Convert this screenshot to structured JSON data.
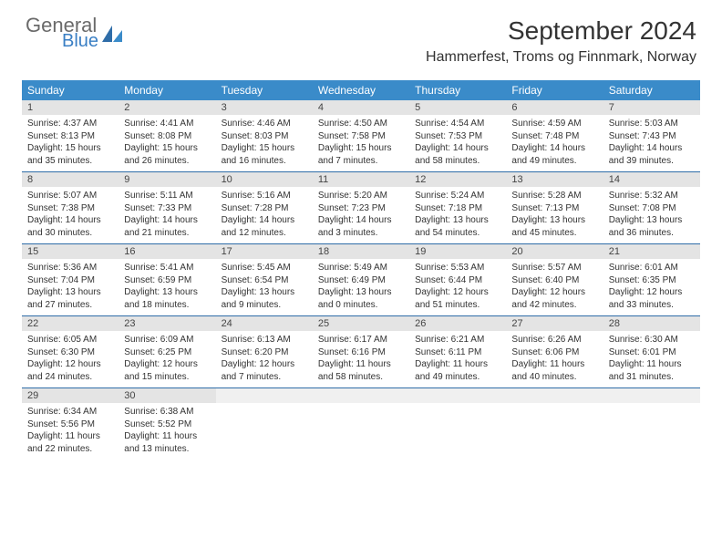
{
  "brand": {
    "general": "General",
    "blue": "Blue",
    "accent": "#3a8bc9"
  },
  "title": "September 2024",
  "location": "Hammerfest, Troms og Finnmark, Norway",
  "colors": {
    "header_bg": "#3a8bc9",
    "header_text": "#ffffff",
    "daynum_bg": "#e4e4e4",
    "border": "#2f6da8",
    "logo_gray": "#6a6a6a",
    "logo_blue": "#3a7fc4"
  },
  "day_labels": [
    "Sunday",
    "Monday",
    "Tuesday",
    "Wednesday",
    "Thursday",
    "Friday",
    "Saturday"
  ],
  "weeks": [
    [
      {
        "n": "1",
        "sr": "Sunrise: 4:37 AM",
        "ss": "Sunset: 8:13 PM",
        "dl1": "Daylight: 15 hours",
        "dl2": "and 35 minutes."
      },
      {
        "n": "2",
        "sr": "Sunrise: 4:41 AM",
        "ss": "Sunset: 8:08 PM",
        "dl1": "Daylight: 15 hours",
        "dl2": "and 26 minutes."
      },
      {
        "n": "3",
        "sr": "Sunrise: 4:46 AM",
        "ss": "Sunset: 8:03 PM",
        "dl1": "Daylight: 15 hours",
        "dl2": "and 16 minutes."
      },
      {
        "n": "4",
        "sr": "Sunrise: 4:50 AM",
        "ss": "Sunset: 7:58 PM",
        "dl1": "Daylight: 15 hours",
        "dl2": "and 7 minutes."
      },
      {
        "n": "5",
        "sr": "Sunrise: 4:54 AM",
        "ss": "Sunset: 7:53 PM",
        "dl1": "Daylight: 14 hours",
        "dl2": "and 58 minutes."
      },
      {
        "n": "6",
        "sr": "Sunrise: 4:59 AM",
        "ss": "Sunset: 7:48 PM",
        "dl1": "Daylight: 14 hours",
        "dl2": "and 49 minutes."
      },
      {
        "n": "7",
        "sr": "Sunrise: 5:03 AM",
        "ss": "Sunset: 7:43 PM",
        "dl1": "Daylight: 14 hours",
        "dl2": "and 39 minutes."
      }
    ],
    [
      {
        "n": "8",
        "sr": "Sunrise: 5:07 AM",
        "ss": "Sunset: 7:38 PM",
        "dl1": "Daylight: 14 hours",
        "dl2": "and 30 minutes."
      },
      {
        "n": "9",
        "sr": "Sunrise: 5:11 AM",
        "ss": "Sunset: 7:33 PM",
        "dl1": "Daylight: 14 hours",
        "dl2": "and 21 minutes."
      },
      {
        "n": "10",
        "sr": "Sunrise: 5:16 AM",
        "ss": "Sunset: 7:28 PM",
        "dl1": "Daylight: 14 hours",
        "dl2": "and 12 minutes."
      },
      {
        "n": "11",
        "sr": "Sunrise: 5:20 AM",
        "ss": "Sunset: 7:23 PM",
        "dl1": "Daylight: 14 hours",
        "dl2": "and 3 minutes."
      },
      {
        "n": "12",
        "sr": "Sunrise: 5:24 AM",
        "ss": "Sunset: 7:18 PM",
        "dl1": "Daylight: 13 hours",
        "dl2": "and 54 minutes."
      },
      {
        "n": "13",
        "sr": "Sunrise: 5:28 AM",
        "ss": "Sunset: 7:13 PM",
        "dl1": "Daylight: 13 hours",
        "dl2": "and 45 minutes."
      },
      {
        "n": "14",
        "sr": "Sunrise: 5:32 AM",
        "ss": "Sunset: 7:08 PM",
        "dl1": "Daylight: 13 hours",
        "dl2": "and 36 minutes."
      }
    ],
    [
      {
        "n": "15",
        "sr": "Sunrise: 5:36 AM",
        "ss": "Sunset: 7:04 PM",
        "dl1": "Daylight: 13 hours",
        "dl2": "and 27 minutes."
      },
      {
        "n": "16",
        "sr": "Sunrise: 5:41 AM",
        "ss": "Sunset: 6:59 PM",
        "dl1": "Daylight: 13 hours",
        "dl2": "and 18 minutes."
      },
      {
        "n": "17",
        "sr": "Sunrise: 5:45 AM",
        "ss": "Sunset: 6:54 PM",
        "dl1": "Daylight: 13 hours",
        "dl2": "and 9 minutes."
      },
      {
        "n": "18",
        "sr": "Sunrise: 5:49 AM",
        "ss": "Sunset: 6:49 PM",
        "dl1": "Daylight: 13 hours",
        "dl2": "and 0 minutes."
      },
      {
        "n": "19",
        "sr": "Sunrise: 5:53 AM",
        "ss": "Sunset: 6:44 PM",
        "dl1": "Daylight: 12 hours",
        "dl2": "and 51 minutes."
      },
      {
        "n": "20",
        "sr": "Sunrise: 5:57 AM",
        "ss": "Sunset: 6:40 PM",
        "dl1": "Daylight: 12 hours",
        "dl2": "and 42 minutes."
      },
      {
        "n": "21",
        "sr": "Sunrise: 6:01 AM",
        "ss": "Sunset: 6:35 PM",
        "dl1": "Daylight: 12 hours",
        "dl2": "and 33 minutes."
      }
    ],
    [
      {
        "n": "22",
        "sr": "Sunrise: 6:05 AM",
        "ss": "Sunset: 6:30 PM",
        "dl1": "Daylight: 12 hours",
        "dl2": "and 24 minutes."
      },
      {
        "n": "23",
        "sr": "Sunrise: 6:09 AM",
        "ss": "Sunset: 6:25 PM",
        "dl1": "Daylight: 12 hours",
        "dl2": "and 15 minutes."
      },
      {
        "n": "24",
        "sr": "Sunrise: 6:13 AM",
        "ss": "Sunset: 6:20 PM",
        "dl1": "Daylight: 12 hours",
        "dl2": "and 7 minutes."
      },
      {
        "n": "25",
        "sr": "Sunrise: 6:17 AM",
        "ss": "Sunset: 6:16 PM",
        "dl1": "Daylight: 11 hours",
        "dl2": "and 58 minutes."
      },
      {
        "n": "26",
        "sr": "Sunrise: 6:21 AM",
        "ss": "Sunset: 6:11 PM",
        "dl1": "Daylight: 11 hours",
        "dl2": "and 49 minutes."
      },
      {
        "n": "27",
        "sr": "Sunrise: 6:26 AM",
        "ss": "Sunset: 6:06 PM",
        "dl1": "Daylight: 11 hours",
        "dl2": "and 40 minutes."
      },
      {
        "n": "28",
        "sr": "Sunrise: 6:30 AM",
        "ss": "Sunset: 6:01 PM",
        "dl1": "Daylight: 11 hours",
        "dl2": "and 31 minutes."
      }
    ],
    [
      {
        "n": "29",
        "sr": "Sunrise: 6:34 AM",
        "ss": "Sunset: 5:56 PM",
        "dl1": "Daylight: 11 hours",
        "dl2": "and 22 minutes."
      },
      {
        "n": "30",
        "sr": "Sunrise: 6:38 AM",
        "ss": "Sunset: 5:52 PM",
        "dl1": "Daylight: 11 hours",
        "dl2": "and 13 minutes."
      },
      {
        "empty": true
      },
      {
        "empty": true
      },
      {
        "empty": true
      },
      {
        "empty": true
      },
      {
        "empty": true
      }
    ]
  ]
}
